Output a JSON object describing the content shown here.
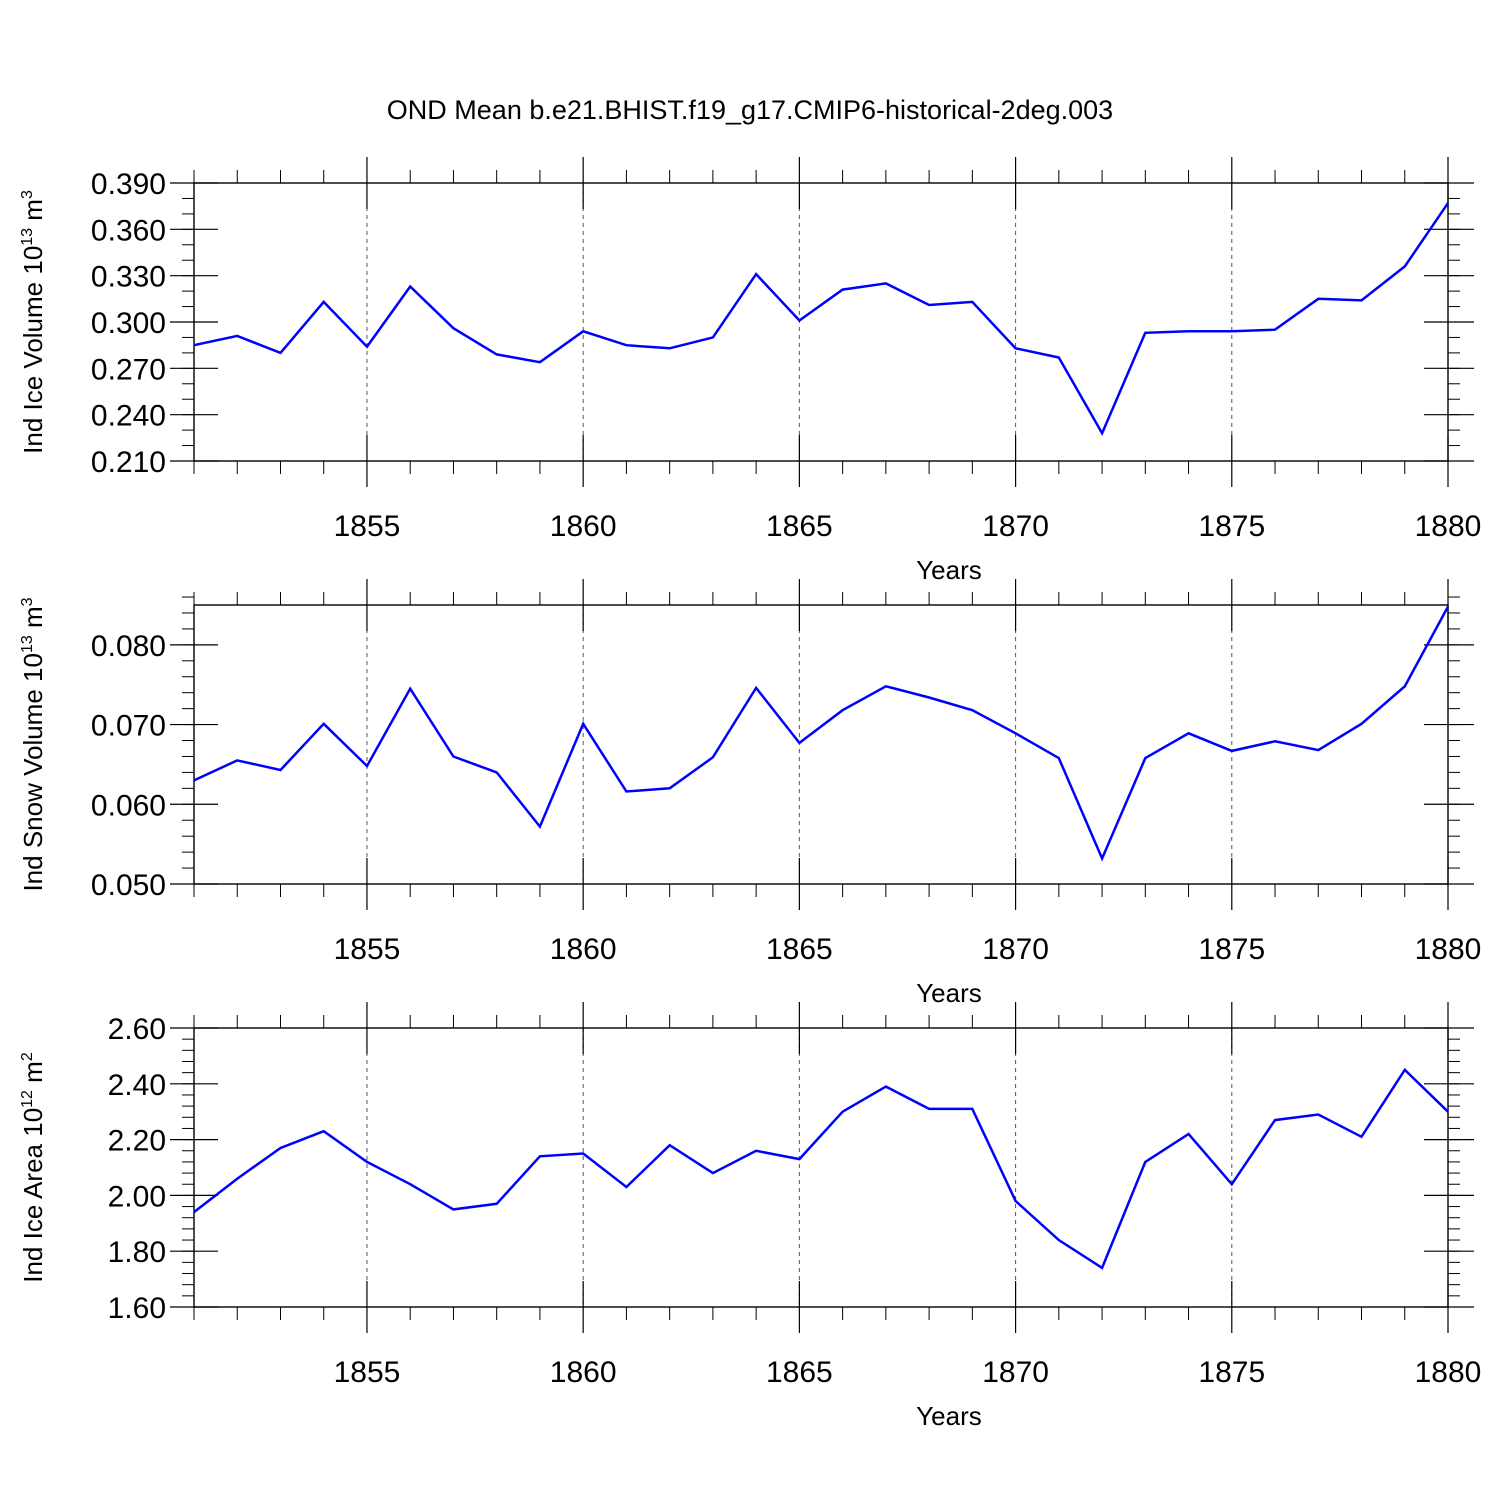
{
  "title": "OND Mean b.e21.BHIST.f19_g17.CMIP6-historical-2deg.003",
  "chart_data": [
    {
      "type": "line",
      "ylabel": {
        "main": "Ind Ice Volume 10",
        "exp": "13",
        "unit": " m",
        "unit_exp": "3"
      },
      "xlabel": "Years",
      "xlim": [
        1851,
        1880
      ],
      "xticks": [
        1855,
        1860,
        1865,
        1870,
        1875,
        1880
      ],
      "ylim": [
        0.21,
        0.39
      ],
      "yticks": [
        "0.210",
        "0.240",
        "0.270",
        "0.300",
        "0.330",
        "0.360",
        "0.390"
      ],
      "yminor": 0.01,
      "grid": "vertical-dashed-at-major-x",
      "color": "#0000ff",
      "x": [
        1851,
        1852,
        1853,
        1854,
        1855,
        1856,
        1857,
        1858,
        1859,
        1860,
        1861,
        1862,
        1863,
        1864,
        1865,
        1866,
        1867,
        1868,
        1869,
        1870,
        1871,
        1872,
        1873,
        1874,
        1875,
        1876,
        1877,
        1878,
        1879,
        1880
      ],
      "y": [
        0.285,
        0.291,
        0.28,
        0.313,
        0.284,
        0.323,
        0.296,
        0.279,
        0.274,
        0.294,
        0.285,
        0.283,
        0.29,
        0.331,
        0.301,
        0.321,
        0.325,
        0.311,
        0.313,
        0.283,
        0.277,
        0.228,
        0.293,
        0.294,
        0.294,
        0.295,
        0.315,
        0.314,
        0.336,
        0.377
      ]
    },
    {
      "type": "line",
      "ylabel": {
        "main": "Ind Snow Volume 10",
        "exp": "13",
        "unit": " m",
        "unit_exp": "3"
      },
      "xlabel": "Years",
      "xlim": [
        1851,
        1880
      ],
      "xticks": [
        1855,
        1860,
        1865,
        1870,
        1875,
        1880
      ],
      "ylim": [
        0.05,
        0.085
      ],
      "yticks": [
        "0.050",
        "0.060",
        "0.070",
        "0.080"
      ],
      "yminor": 0.002,
      "grid": "vertical-dashed-at-major-x",
      "color": "#0000ff",
      "x": [
        1851,
        1852,
        1853,
        1854,
        1855,
        1856,
        1857,
        1858,
        1859,
        1860,
        1861,
        1862,
        1863,
        1864,
        1865,
        1866,
        1867,
        1868,
        1869,
        1870,
        1871,
        1872,
        1873,
        1874,
        1875,
        1876,
        1877,
        1878,
        1879,
        1880
      ],
      "y": [
        0.063,
        0.0655,
        0.0643,
        0.0701,
        0.0648,
        0.0745,
        0.066,
        0.064,
        0.0572,
        0.0701,
        0.0616,
        0.062,
        0.0659,
        0.0746,
        0.0677,
        0.0718,
        0.0748,
        0.0734,
        0.0718,
        0.0689,
        0.0658,
        0.0532,
        0.0658,
        0.0689,
        0.0667,
        0.0679,
        0.0668,
        0.0701,
        0.0748,
        0.0848
      ]
    },
    {
      "type": "line",
      "ylabel": {
        "main": "Ind Ice Area 10",
        "exp": "12",
        "unit": " m",
        "unit_exp": "2"
      },
      "xlabel": "Years",
      "xlim": [
        1851,
        1880
      ],
      "xticks": [
        1855,
        1860,
        1865,
        1870,
        1875,
        1880
      ],
      "ylim": [
        1.6,
        2.6
      ],
      "yticks": [
        "1.60",
        "1.80",
        "2.00",
        "2.20",
        "2.40",
        "2.60"
      ],
      "yminor": 0.04,
      "grid": "vertical-dashed-at-major-x",
      "color": "#0000ff",
      "x": [
        1851,
        1852,
        1853,
        1854,
        1855,
        1856,
        1857,
        1858,
        1859,
        1860,
        1861,
        1862,
        1863,
        1864,
        1865,
        1866,
        1867,
        1868,
        1869,
        1870,
        1871,
        1872,
        1873,
        1874,
        1875,
        1876,
        1877,
        1878,
        1879,
        1880
      ],
      "y": [
        1.94,
        2.06,
        2.17,
        2.23,
        2.12,
        2.04,
        1.95,
        1.97,
        2.14,
        2.15,
        2.03,
        2.18,
        2.08,
        2.16,
        2.13,
        2.3,
        2.39,
        2.31,
        2.31,
        1.98,
        1.84,
        1.74,
        2.12,
        2.22,
        2.04,
        2.27,
        2.29,
        2.21,
        2.45,
        2.3
      ]
    }
  ]
}
